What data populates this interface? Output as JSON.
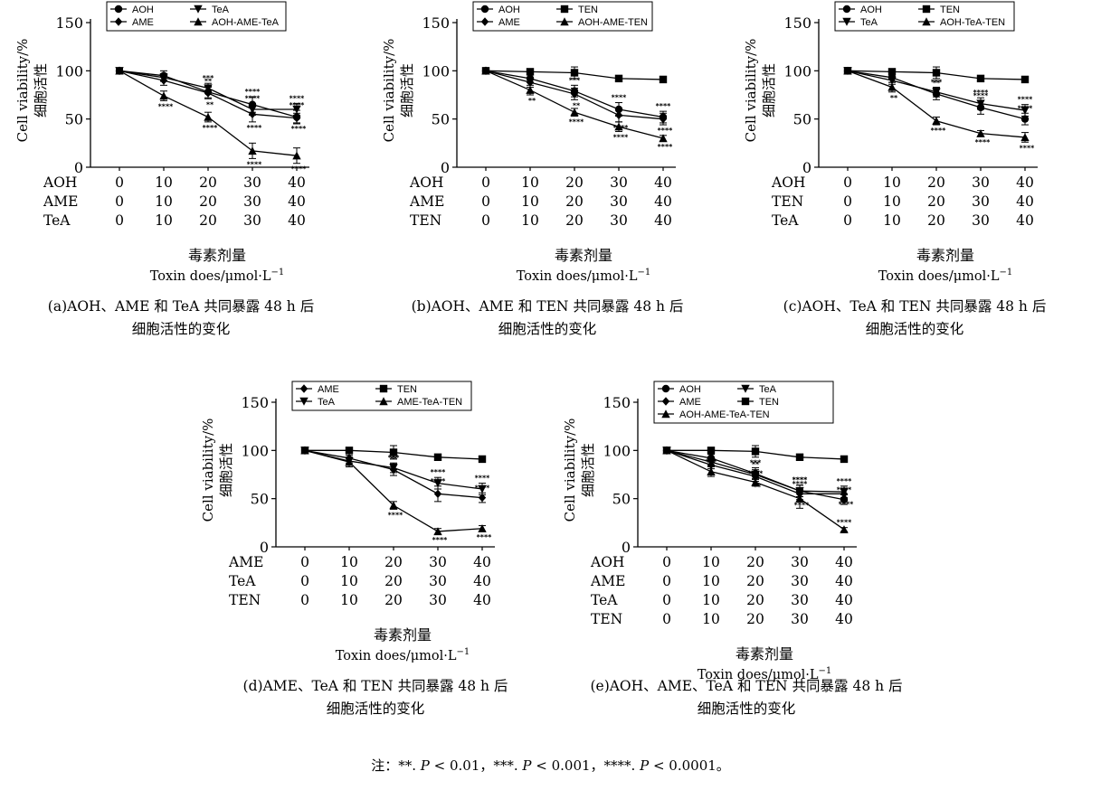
{
  "figure": {
    "yaxis_cn": "细胞活性",
    "yaxis_en": "Cell viability/%",
    "xaxis_cn": "毒素剂量",
    "xaxis_en": "Toxin does/μmol·L",
    "xaxis_exp": "−1",
    "note": [
      {
        "text": "注：**. ",
        "italic": false
      },
      {
        "text": "P",
        "italic": true
      },
      {
        "text": " < 0.01，***. ",
        "italic": false
      },
      {
        "text": "P",
        "italic": true
      },
      {
        "text": " < 0.001，****. ",
        "italic": false
      },
      {
        "text": "P",
        "italic": true
      },
      {
        "text": " < 0.0001。",
        "italic": false
      }
    ]
  },
  "chart_data": [
    {
      "id": "a",
      "type": "line",
      "caption": [
        "(a)AOH、AME 和 TeA 共同暴露 48 h 后",
        "细胞活性的变化"
      ],
      "ylim": [
        0,
        150
      ],
      "yticks": [
        0,
        50,
        100,
        150
      ],
      "x": [
        0,
        10,
        20,
        30,
        40
      ],
      "dose_rows": [
        {
          "name": "AOH",
          "values": [
            "0",
            "10",
            "20",
            "30",
            "40"
          ]
        },
        {
          "name": "AME",
          "values": [
            "0",
            "10",
            "20",
            "30",
            "40"
          ]
        },
        {
          "name": "TeA",
          "values": [
            "0",
            "10",
            "20",
            "30",
            "40"
          ]
        }
      ],
      "series": [
        {
          "name": "AOH",
          "marker": "circle",
          "values": [
            100,
            95,
            78,
            65,
            52
          ],
          "err": [
            2,
            5,
            6,
            8,
            7
          ],
          "sig": [
            "",
            "",
            "**",
            "****",
            "****"
          ]
        },
        {
          "name": "AME",
          "marker": "diamond",
          "values": [
            100,
            90,
            77,
            55,
            51
          ],
          "err": [
            2,
            5,
            6,
            8,
            5
          ],
          "sig": [
            "",
            "",
            "**",
            "****",
            "****"
          ]
        },
        {
          "name": "TeA",
          "marker": "tri-down",
          "values": [
            100,
            93,
            82,
            60,
            60
          ],
          "err": [
            2,
            4,
            5,
            6,
            6
          ],
          "sig": [
            "",
            "",
            "***",
            "****",
            "****"
          ]
        },
        {
          "name": "AOH-AME-TeA",
          "marker": "tri-up",
          "values": [
            100,
            74,
            52,
            17,
            12
          ],
          "err": [
            2,
            5,
            5,
            8,
            8
          ],
          "sig": [
            "",
            "****",
            "****",
            "****",
            "****"
          ]
        }
      ],
      "legend_rows": [
        [
          "AOH",
          "TeA"
        ],
        [
          "AME",
          "AOH-AME-TeA"
        ]
      ]
    },
    {
      "id": "b",
      "type": "line",
      "caption": [
        "(b)AOH、AME 和 TEN 共同暴露 48 h 后",
        "细胞活性的变化"
      ],
      "ylim": [
        0,
        150
      ],
      "yticks": [
        0,
        50,
        100,
        150
      ],
      "x": [
        0,
        10,
        20,
        30,
        40
      ],
      "dose_rows": [
        {
          "name": "AOH",
          "values": [
            "0",
            "10",
            "20",
            "30",
            "40"
          ]
        },
        {
          "name": "AME",
          "values": [
            "0",
            "10",
            "20",
            "30",
            "40"
          ]
        },
        {
          "name": "TEN",
          "values": [
            "0",
            "10",
            "20",
            "30",
            "40"
          ]
        }
      ],
      "series": [
        {
          "name": "AOH",
          "marker": "circle",
          "values": [
            100,
            92,
            79,
            60,
            52
          ],
          "err": [
            2,
            4,
            6,
            7,
            6
          ],
          "sig": [
            "",
            "",
            "***",
            "****",
            "****"
          ]
        },
        {
          "name": "AME",
          "marker": "diamond",
          "values": [
            100,
            88,
            76,
            54,
            50
          ],
          "err": [
            2,
            5,
            6,
            7,
            6
          ],
          "sig": [
            "",
            "",
            "**",
            "****",
            "****"
          ]
        },
        {
          "name": "TEN",
          "marker": "square",
          "values": [
            100,
            99,
            98,
            92,
            91
          ],
          "err": [
            2,
            3,
            6,
            2,
            2
          ],
          "sig": [
            "",
            "",
            "",
            "",
            ""
          ]
        },
        {
          "name": "AOH-AME-TEN",
          "marker": "tri-up",
          "values": [
            100,
            80,
            57,
            42,
            30
          ],
          "err": [
            2,
            5,
            4,
            5,
            3
          ],
          "sig": [
            "",
            "**",
            "****",
            "****",
            "****"
          ]
        }
      ],
      "legend_rows": [
        [
          "AOH",
          "TEN"
        ],
        [
          "AME",
          "AOH-AME-TEN"
        ]
      ]
    },
    {
      "id": "c",
      "type": "line",
      "caption": [
        "(c)AOH、TeA 和 TEN 共同暴露 48 h 后",
        "细胞活性的变化"
      ],
      "ylim": [
        0,
        150
      ],
      "yticks": [
        0,
        50,
        100,
        150
      ],
      "x": [
        0,
        10,
        20,
        30,
        40
      ],
      "dose_rows": [
        {
          "name": "AOH",
          "values": [
            "0",
            "10",
            "20",
            "30",
            "40"
          ]
        },
        {
          "name": "TEN",
          "values": [
            "0",
            "10",
            "20",
            "30",
            "40"
          ]
        },
        {
          "name": "TeA",
          "values": [
            "0",
            "10",
            "20",
            "30",
            "40"
          ]
        }
      ],
      "series": [
        {
          "name": "AOH",
          "marker": "circle",
          "values": [
            100,
            93,
            76,
            62,
            50
          ],
          "err": [
            2,
            5,
            6,
            7,
            6
          ],
          "sig": [
            "",
            "",
            "**",
            "****",
            "****"
          ]
        },
        {
          "name": "TEN",
          "marker": "square",
          "values": [
            100,
            99,
            98,
            92,
            91
          ],
          "err": [
            2,
            3,
            6,
            2,
            2
          ],
          "sig": [
            "",
            "",
            "",
            "",
            ""
          ]
        },
        {
          "name": "TeA",
          "marker": "tri-down",
          "values": [
            100,
            90,
            78,
            66,
            59
          ],
          "err": [
            2,
            4,
            5,
            6,
            6
          ],
          "sig": [
            "",
            "",
            "***",
            "****",
            "****"
          ]
        },
        {
          "name": "AOH-TeA-TEN",
          "marker": "tri-up",
          "values": [
            100,
            83,
            48,
            35,
            31
          ],
          "err": [
            2,
            5,
            4,
            3,
            5
          ],
          "sig": [
            "",
            "**",
            "****",
            "****",
            "****"
          ]
        }
      ],
      "legend_rows": [
        [
          "AOH",
          "TEN"
        ],
        [
          "TeA",
          "AOH-TeA-TEN"
        ]
      ]
    },
    {
      "id": "d",
      "type": "line",
      "caption": [
        "(d)AME、TeA 和 TEN 共同暴露 48 h 后",
        "细胞活性的变化"
      ],
      "ylim": [
        0,
        150
      ],
      "yticks": [
        0,
        50,
        100,
        150
      ],
      "x": [
        0,
        10,
        20,
        30,
        40
      ],
      "dose_rows": [
        {
          "name": "AME",
          "values": [
            "0",
            "10",
            "20",
            "30",
            "40"
          ]
        },
        {
          "name": "TeA",
          "values": [
            "0",
            "10",
            "20",
            "30",
            "40"
          ]
        },
        {
          "name": "TEN",
          "values": [
            "0",
            "10",
            "20",
            "30",
            "40"
          ]
        }
      ],
      "series": [
        {
          "name": "AME",
          "marker": "diamond",
          "values": [
            100,
            92,
            80,
            55,
            51
          ],
          "err": [
            2,
            5,
            6,
            8,
            5
          ],
          "sig": [
            "",
            "",
            "**",
            "****",
            "****"
          ]
        },
        {
          "name": "TEN",
          "marker": "square",
          "values": [
            100,
            100,
            98,
            93,
            91
          ],
          "err": [
            2,
            3,
            7,
            2,
            2
          ],
          "sig": [
            "",
            "",
            "",
            "",
            ""
          ]
        },
        {
          "name": "TeA",
          "marker": "tri-down",
          "values": [
            100,
            89,
            82,
            66,
            60
          ],
          "err": [
            2,
            6,
            5,
            6,
            6
          ],
          "sig": [
            "",
            "",
            "***",
            "****",
            "****"
          ]
        },
        {
          "name": "AME-TeA-TEN",
          "marker": "tri-up",
          "values": [
            100,
            88,
            43,
            16,
            19
          ],
          "err": [
            2,
            5,
            4,
            3,
            3
          ],
          "sig": [
            "",
            "",
            "****",
            "****",
            "****"
          ]
        }
      ],
      "legend_rows": [
        [
          "AME",
          "TEN"
        ],
        [
          "TeA",
          "AME-TeA-TEN"
        ]
      ]
    },
    {
      "id": "e",
      "type": "line",
      "caption": [
        "(e)AOH、AME、TeA 和 TEN 共同暴露 48 h 后",
        "细胞活性的变化"
      ],
      "ylim": [
        0,
        150
      ],
      "yticks": [
        0,
        50,
        100,
        150
      ],
      "x": [
        0,
        10,
        20,
        30,
        40
      ],
      "dose_rows": [
        {
          "name": "AOH",
          "values": [
            "0",
            "10",
            "20",
            "30",
            "40"
          ]
        },
        {
          "name": "AME",
          "values": [
            "0",
            "10",
            "20",
            "30",
            "40"
          ]
        },
        {
          "name": "TeA",
          "values": [
            "0",
            "10",
            "20",
            "30",
            "40"
          ]
        },
        {
          "name": "TEN",
          "values": [
            "0",
            "10",
            "20",
            "30",
            "40"
          ]
        }
      ],
      "series": [
        {
          "name": "AOH",
          "marker": "circle",
          "values": [
            100,
            92,
            76,
            58,
            49
          ],
          "err": [
            2,
            4,
            6,
            6,
            5
          ],
          "sig": [
            "",
            "",
            "***",
            "****",
            "****"
          ]
        },
        {
          "name": "AME",
          "marker": "diamond",
          "values": [
            100,
            85,
            73,
            55,
            55
          ],
          "err": [
            2,
            4,
            5,
            6,
            5
          ],
          "sig": [
            "",
            "",
            "**",
            "****",
            "****"
          ]
        },
        {
          "name": "TeA",
          "marker": "tri-down",
          "values": [
            100,
            88,
            75,
            58,
            57
          ],
          "err": [
            2,
            4,
            5,
            6,
            6
          ],
          "sig": [
            "",
            "",
            "**",
            "****",
            "****"
          ]
        },
        {
          "name": "TEN",
          "marker": "square",
          "values": [
            100,
            100,
            99,
            93,
            91
          ],
          "err": [
            2,
            3,
            6,
            2,
            2
          ],
          "sig": [
            "",
            "",
            "",
            "",
            ""
          ]
        },
        {
          "name": "AOH-AME-TeA-TEN",
          "marker": "tri-up",
          "values": [
            100,
            78,
            67,
            50,
            18
          ],
          "err": [
            2,
            5,
            4,
            10,
            2
          ],
          "sig": [
            "",
            "***",
            "****",
            "****",
            "****"
          ]
        }
      ],
      "legend_rows": [
        [
          "AOH",
          "TeA"
        ],
        [
          "AME",
          "TEN"
        ],
        [
          "AOH-AME-TeA-TEN"
        ]
      ]
    }
  ]
}
